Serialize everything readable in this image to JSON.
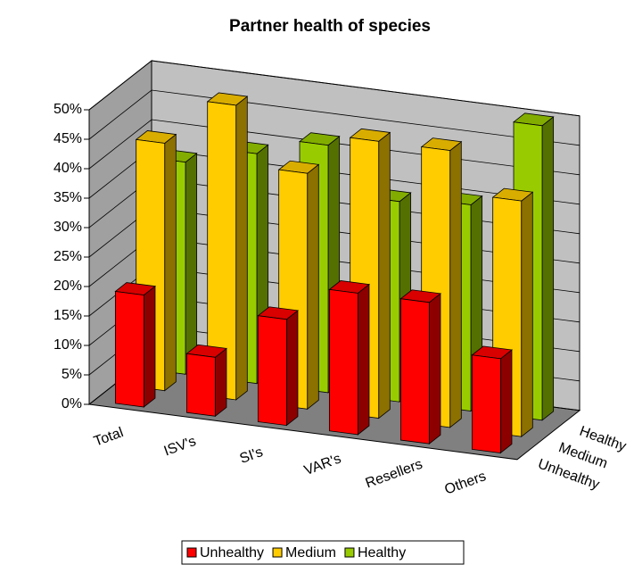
{
  "chart_data": {
    "type": "bar3d",
    "title": "Partner health of species",
    "categories": [
      "Total",
      "ISV's",
      "SI's",
      "VAR's",
      "Resellers",
      "Others"
    ],
    "series": [
      {
        "name": "Unhealthy",
        "color": "#ff0000",
        "values": [
          19,
          10,
          18,
          24,
          24,
          16
        ]
      },
      {
        "name": "Medium",
        "color": "#ffcc00",
        "values": [
          42,
          50,
          40,
          47,
          47,
          40
        ]
      },
      {
        "name": "Healthy",
        "color": "#99cc00",
        "values": [
          36,
          39,
          42,
          34,
          35,
          50
        ]
      }
    ],
    "ylim": [
      0,
      50
    ],
    "yticks": [
      {
        "value": 0,
        "label": "0%"
      },
      {
        "value": 5,
        "label": "5%"
      },
      {
        "value": 10,
        "label": "10%"
      },
      {
        "value": 15,
        "label": "15%"
      },
      {
        "value": 20,
        "label": "20%"
      },
      {
        "value": 25,
        "label": "25%"
      },
      {
        "value": 30,
        "label": "30%"
      },
      {
        "value": 35,
        "label": "35%"
      },
      {
        "value": 40,
        "label": "40%"
      },
      {
        "value": 45,
        "label": "45%"
      },
      {
        "value": 50,
        "label": "50%"
      }
    ],
    "grid": true
  }
}
